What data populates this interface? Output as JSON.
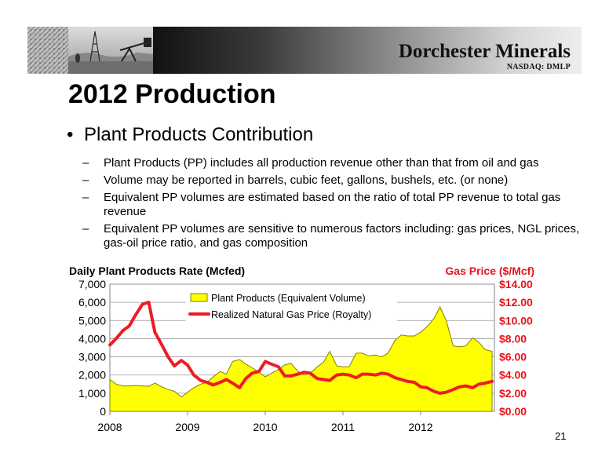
{
  "header": {
    "brand": "Dorchester Minerals",
    "ticker": "NASDAQ: DMLP"
  },
  "slide": {
    "title": "2012 Production",
    "bullet": "Plant Products Contribution",
    "subbullets": [
      "Plant Products (PP) includes all production revenue other than that from oil and gas",
      "Volume may be reported in barrels, cubic feet, gallons, bushels, etc. (or none)",
      "Equivalent PP volumes are estimated based on the ratio of total PP revenue to total gas revenue",
      "Equivalent PP volumes are sensitive to numerous factors including:  gas prices, NGL prices, gas-oil price ratio, and gas composition"
    ],
    "page_number": "21",
    "dash": "–",
    "bullet_symbol": "•"
  },
  "colors": {
    "area_fill": "#ffff00",
    "area_stroke": "#808000",
    "line": "#ee1c25",
    "right_axis_text": "#e8131b"
  },
  "chart_data": {
    "type": "area",
    "left_axis_title": "Daily Plant Products Rate (Mcfed)",
    "right_axis_title": "Gas Price ($/Mcf)",
    "xlim": [
      2008,
      2012.95
    ],
    "ylim_left": [
      0,
      7000
    ],
    "ylim_right": [
      0,
      14
    ],
    "x_ticks": [
      "2008",
      "2009",
      "2010",
      "2011",
      "2012"
    ],
    "y_ticks_left": [
      "0",
      "1,000",
      "2,000",
      "3,000",
      "4,000",
      "5,000",
      "6,000",
      "7,000"
    ],
    "y_ticks_right": [
      "$0.00",
      "$2.00",
      "$4.00",
      "$6.00",
      "$8.00",
      "$10.00",
      "$12.00",
      "$14.00"
    ],
    "grid": true,
    "legend_position": "top-left",
    "series": [
      {
        "name": "Plant Products (Equivalent Volume)",
        "axis": "left",
        "kind": "area",
        "x": [
          2008.0,
          2008.08,
          2008.17,
          2008.25,
          2008.33,
          2008.42,
          2008.5,
          2008.58,
          2008.67,
          2008.75,
          2008.83,
          2008.92,
          2009.0,
          2009.08,
          2009.17,
          2009.25,
          2009.33,
          2009.42,
          2009.5,
          2009.58,
          2009.67,
          2009.75,
          2009.83,
          2009.92,
          2010.0,
          2010.08,
          2010.17,
          2010.25,
          2010.33,
          2010.42,
          2010.5,
          2010.58,
          2010.67,
          2010.75,
          2010.83,
          2010.92,
          2011.0,
          2011.08,
          2011.17,
          2011.25,
          2011.33,
          2011.42,
          2011.5,
          2011.58,
          2011.67,
          2011.75,
          2011.83,
          2011.92,
          2012.0,
          2012.08,
          2012.17,
          2012.25,
          2012.33,
          2012.42,
          2012.5,
          2012.58,
          2012.67,
          2012.75,
          2012.83,
          2012.92
        ],
        "values": [
          1750,
          1500,
          1400,
          1400,
          1420,
          1400,
          1380,
          1550,
          1350,
          1200,
          1100,
          800,
          1050,
          1300,
          1500,
          1600,
          1900,
          2200,
          2050,
          2750,
          2850,
          2600,
          2400,
          2150,
          1900,
          2100,
          2300,
          2550,
          2650,
          2200,
          2000,
          2100,
          2450,
          2700,
          3300,
          2500,
          2450,
          2450,
          3200,
          3200,
          3050,
          3100,
          3000,
          3200,
          3900,
          4200,
          4150,
          4150,
          4350,
          4650,
          5100,
          5750,
          5000,
          3600,
          3550,
          3600,
          4050,
          3800,
          3400,
          3300
        ]
      },
      {
        "name": "Realized Natural Gas Price (Royalty)",
        "axis": "right",
        "kind": "line",
        "x": [
          2008.0,
          2008.08,
          2008.17,
          2008.25,
          2008.33,
          2008.42,
          2008.5,
          2008.58,
          2008.67,
          2008.75,
          2008.83,
          2008.92,
          2009.0,
          2009.08,
          2009.17,
          2009.25,
          2009.33,
          2009.42,
          2009.5,
          2009.58,
          2009.67,
          2009.75,
          2009.83,
          2009.92,
          2010.0,
          2010.08,
          2010.17,
          2010.25,
          2010.33,
          2010.42,
          2010.5,
          2010.58,
          2010.67,
          2010.75,
          2010.83,
          2010.92,
          2011.0,
          2011.08,
          2011.17,
          2011.25,
          2011.33,
          2011.42,
          2011.5,
          2011.58,
          2011.67,
          2011.75,
          2011.83,
          2011.92,
          2012.0,
          2012.08,
          2012.17,
          2012.25,
          2012.33,
          2012.42,
          2012.5,
          2012.58,
          2012.67,
          2012.75,
          2012.83,
          2012.92
        ],
        "values": [
          7.3,
          8.0,
          8.9,
          9.4,
          10.6,
          11.8,
          12.0,
          8.7,
          7.3,
          6.0,
          5.0,
          5.6,
          5.1,
          4.0,
          3.4,
          3.2,
          2.9,
          3.2,
          3.5,
          3.1,
          2.6,
          3.6,
          4.2,
          4.4,
          5.5,
          5.2,
          4.9,
          3.9,
          3.9,
          4.1,
          4.3,
          4.2,
          3.6,
          3.5,
          3.4,
          4.0,
          4.1,
          4.0,
          3.7,
          4.1,
          4.1,
          4.0,
          4.2,
          4.1,
          3.7,
          3.5,
          3.3,
          3.2,
          2.7,
          2.6,
          2.2,
          2.0,
          2.1,
          2.4,
          2.7,
          2.8,
          2.6,
          3.0,
          3.1,
          3.3
        ]
      }
    ]
  }
}
